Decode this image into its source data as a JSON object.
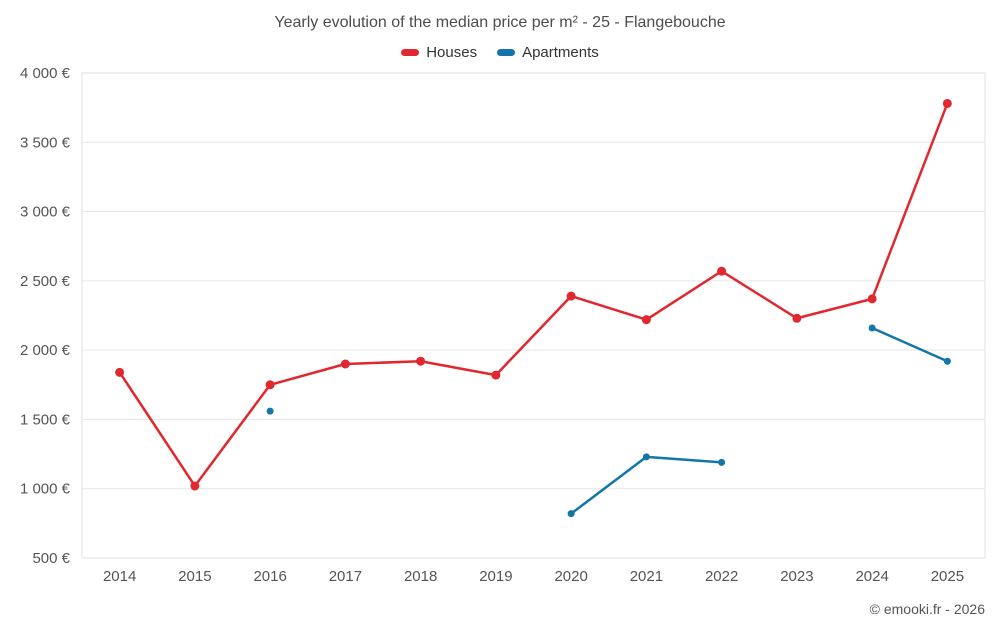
{
  "chart_data": {
    "type": "line",
    "title": "Yearly evolution of the median price per m² - 25 - Flangebouche",
    "categories": [
      "2014",
      "2015",
      "2016",
      "2017",
      "2018",
      "2019",
      "2020",
      "2021",
      "2022",
      "2023",
      "2024",
      "2025"
    ],
    "series": [
      {
        "name": "Houses",
        "color": "#e0282e",
        "marker_radius": 4.5,
        "values": [
          1840,
          1020,
          1750,
          1900,
          1920,
          1820,
          2390,
          2220,
          2570,
          2230,
          2370,
          3780
        ]
      },
      {
        "name": "Apartments",
        "color": "#1375a8",
        "marker_radius": 3.5,
        "values": [
          null,
          null,
          1560,
          null,
          null,
          null,
          820,
          1230,
          1190,
          null,
          2160,
          1920
        ]
      }
    ],
    "ylim": [
      500,
      4000
    ],
    "ytick_step": 500,
    "ytick_labels": [
      "500 €",
      "1 000 €",
      "1 500 €",
      "2 000 €",
      "2 500 €",
      "3 000 €",
      "3 500 €",
      "4 000 €"
    ],
    "grid": "horizontal",
    "legend_position": "top",
    "gridline_color": "#e6e6e6",
    "plot_border_color": "#e2e2e2"
  },
  "footer": {
    "credit": "© emooki.fr - 2026"
  }
}
